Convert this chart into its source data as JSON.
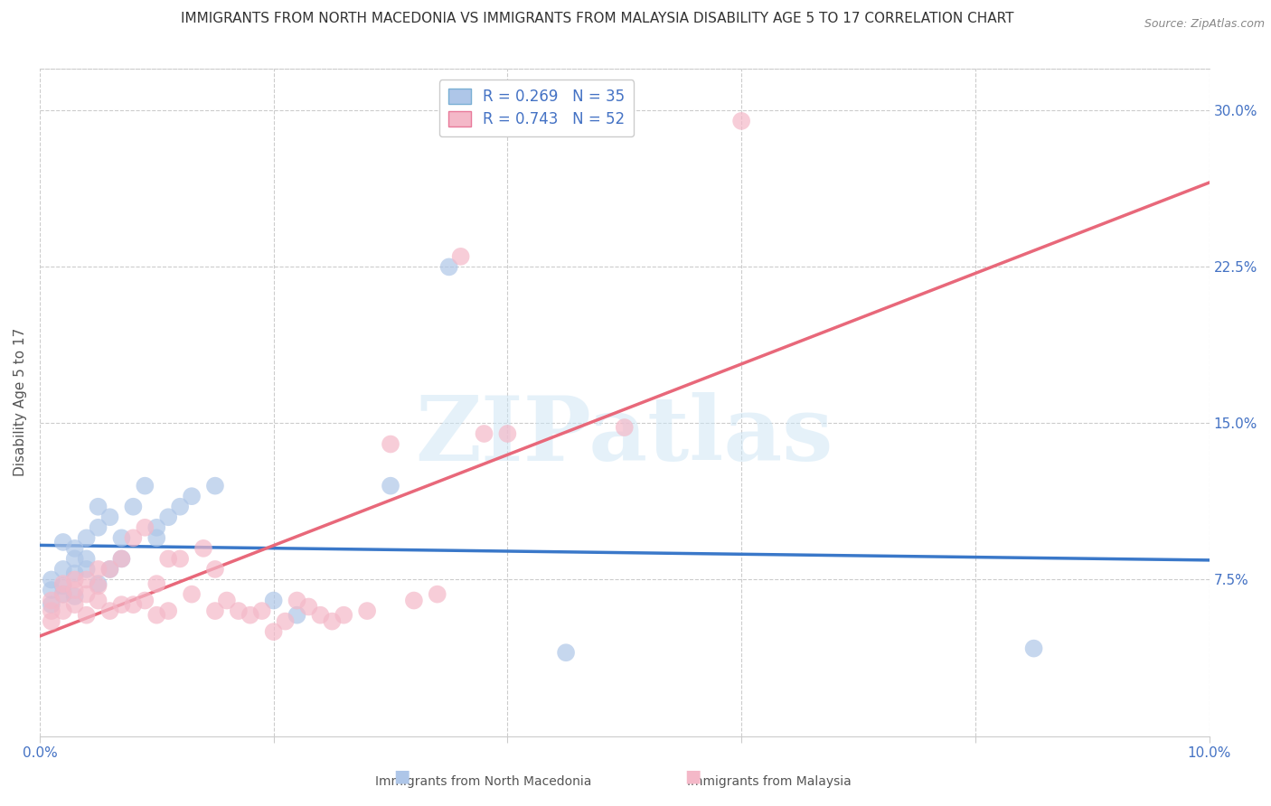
{
  "title": "IMMIGRANTS FROM NORTH MACEDONIA VS IMMIGRANTS FROM MALAYSIA DISABILITY AGE 5 TO 17 CORRELATION CHART",
  "source": "Source: ZipAtlas.com",
  "ylabel": "Disability Age 5 to 17",
  "xlim": [
    0.0,
    0.1
  ],
  "ylim": [
    0.0,
    0.32
  ],
  "xticks": [
    0.0,
    0.02,
    0.04,
    0.06,
    0.08,
    0.1
  ],
  "yticks_right": [
    0.075,
    0.15,
    0.225,
    0.3
  ],
  "ytick_right_labels": [
    "7.5%",
    "15.0%",
    "22.5%",
    "30.0%"
  ],
  "series1_color": "#aec6e8",
  "series1_edge": "#7aafd4",
  "series2_color": "#f4b8c8",
  "series2_edge": "#e87a9a",
  "line1_color": "#3a78c9",
  "line2_color": "#e8687a",
  "R1": "0.269",
  "N1": "35",
  "R2": "0.743",
  "N2": "52",
  "legend_text_color": "#4472c4",
  "legend1": "Immigrants from North Macedonia",
  "legend2": "Immigrants from Malaysia",
  "watermark": "ZIPatlas",
  "series1_x": [
    0.001,
    0.001,
    0.001,
    0.002,
    0.002,
    0.002,
    0.002,
    0.003,
    0.003,
    0.003,
    0.003,
    0.004,
    0.004,
    0.004,
    0.005,
    0.005,
    0.005,
    0.006,
    0.006,
    0.007,
    0.007,
    0.008,
    0.009,
    0.01,
    0.01,
    0.011,
    0.012,
    0.013,
    0.015,
    0.02,
    0.022,
    0.03,
    0.035,
    0.045,
    0.085
  ],
  "series1_y": [
    0.063,
    0.07,
    0.075,
    0.068,
    0.072,
    0.08,
    0.093,
    0.067,
    0.078,
    0.085,
    0.09,
    0.08,
    0.085,
    0.095,
    0.073,
    0.1,
    0.11,
    0.08,
    0.105,
    0.085,
    0.095,
    0.11,
    0.12,
    0.095,
    0.1,
    0.105,
    0.11,
    0.115,
    0.12,
    0.065,
    0.058,
    0.12,
    0.225,
    0.04,
    0.042
  ],
  "series2_x": [
    0.001,
    0.001,
    0.001,
    0.002,
    0.002,
    0.002,
    0.003,
    0.003,
    0.003,
    0.004,
    0.004,
    0.004,
    0.005,
    0.005,
    0.005,
    0.006,
    0.006,
    0.007,
    0.007,
    0.008,
    0.008,
    0.009,
    0.009,
    0.01,
    0.01,
    0.011,
    0.011,
    0.012,
    0.013,
    0.014,
    0.015,
    0.015,
    0.016,
    0.017,
    0.018,
    0.019,
    0.02,
    0.021,
    0.022,
    0.023,
    0.024,
    0.025,
    0.026,
    0.028,
    0.03,
    0.032,
    0.034,
    0.036,
    0.038,
    0.04,
    0.05,
    0.06
  ],
  "series2_y": [
    0.055,
    0.06,
    0.065,
    0.06,
    0.068,
    0.073,
    0.063,
    0.07,
    0.075,
    0.058,
    0.068,
    0.075,
    0.065,
    0.072,
    0.08,
    0.06,
    0.08,
    0.063,
    0.085,
    0.063,
    0.095,
    0.065,
    0.1,
    0.058,
    0.073,
    0.06,
    0.085,
    0.085,
    0.068,
    0.09,
    0.06,
    0.08,
    0.065,
    0.06,
    0.058,
    0.06,
    0.05,
    0.055,
    0.065,
    0.062,
    0.058,
    0.055,
    0.058,
    0.06,
    0.14,
    0.065,
    0.068,
    0.23,
    0.145,
    0.145,
    0.148,
    0.295
  ],
  "grid_color": "#cccccc",
  "background_color": "#ffffff",
  "title_fontsize": 11,
  "axis_label_fontsize": 11,
  "tick_fontsize": 11,
  "legend_fontsize": 12
}
